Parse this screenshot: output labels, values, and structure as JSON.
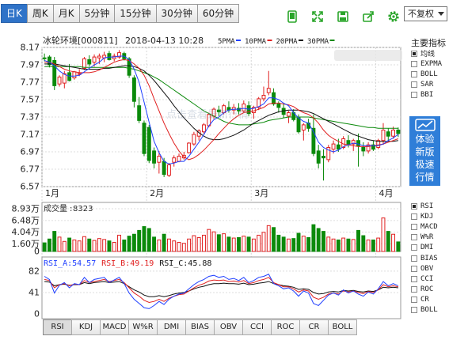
{
  "period_tabs": [
    {
      "label": "日K",
      "active": true
    },
    {
      "label": "周K",
      "active": false
    },
    {
      "label": "月K",
      "active": false
    },
    {
      "label": "5分钟",
      "active": false
    },
    {
      "label": "15分钟",
      "active": false
    },
    {
      "label": "30分钟",
      "active": false
    },
    {
      "label": "60分钟",
      "active": false
    }
  ],
  "tools": [
    {
      "name": "phone-icon"
    },
    {
      "name": "fullscreen-icon"
    },
    {
      "name": "save-icon"
    },
    {
      "name": "share-icon"
    },
    {
      "name": "settings-icon"
    }
  ],
  "fuquan_select": "不复权",
  "watermark": "点击查看最新行情",
  "right_panel": {
    "title": "主要指标",
    "main_indicators": [
      {
        "label": "均线",
        "checked": true
      },
      {
        "label": "EXPMA",
        "checked": false
      },
      {
        "label": "BOLL",
        "checked": false
      },
      {
        "label": "SAR",
        "checked": false
      },
      {
        "label": "BBI",
        "checked": false
      }
    ],
    "promo": [
      "体验",
      "新版",
      "极速",
      "行情"
    ],
    "sub_indicators": [
      {
        "label": "RSI",
        "checked": true
      },
      {
        "label": "KDJ",
        "checked": false
      },
      {
        "label": "MACD",
        "checked": false
      },
      {
        "label": "W%R",
        "checked": false
      },
      {
        "label": "DMI",
        "checked": false
      },
      {
        "label": "BIAS",
        "checked": false
      },
      {
        "label": "OBV",
        "checked": false
      },
      {
        "label": "CCI",
        "checked": false
      },
      {
        "label": "ROC",
        "checked": false
      },
      {
        "label": "CR",
        "checked": false
      },
      {
        "label": "BOLL",
        "checked": false
      }
    ]
  },
  "indicator_tabs": [
    {
      "label": "RSI",
      "active": true
    },
    {
      "label": "KDJ",
      "active": false
    },
    {
      "label": "MACD",
      "active": false
    },
    {
      "label": "W%R",
      "active": false
    },
    {
      "label": "DMI",
      "active": false
    },
    {
      "label": "BIAS",
      "active": false
    },
    {
      "label": "OBV",
      "active": false
    },
    {
      "label": "CCI",
      "active": false
    },
    {
      "label": "ROC",
      "active": false
    },
    {
      "label": "CR",
      "active": false
    },
    {
      "label": "BOLL",
      "active": false
    }
  ],
  "chart_data": {
    "type": "candlestick",
    "stock": "冰轮环境[000811]",
    "datetime": "2018-04-13 10:28",
    "ma_legend": [
      {
        "label": "5PMA",
        "color": "#1f3fff"
      },
      {
        "label": "10PMA",
        "color": "#e02020"
      },
      {
        "label": "20PMA",
        "color": "#111111"
      },
      {
        "label": "30PMA",
        "color": "#0b8a0b"
      }
    ],
    "price_axis": {
      "ticks": [
        8.17,
        7.97,
        7.77,
        7.57,
        7.37,
        7.17,
        6.97,
        6.77,
        6.57
      ],
      "range": [
        6.57,
        8.17
      ]
    },
    "month_labels": [
      {
        "label": "1月",
        "index": 0
      },
      {
        "label": "2月",
        "index": 21
      },
      {
        "label": "3月",
        "index": 42
      },
      {
        "label": "4月",
        "index": 67
      }
    ],
    "colors": {
      "up": "#e02020",
      "down": "#0b8a0b"
    },
    "candles": [
      {
        "o": 8.05,
        "h": 8.1,
        "l": 8.01,
        "c": 8.04
      },
      {
        "o": 8.06,
        "h": 8.08,
        "l": 7.94,
        "c": 7.97
      },
      {
        "o": 8.02,
        "h": 8.06,
        "l": 7.68,
        "c": 7.73
      },
      {
        "o": 7.75,
        "h": 7.85,
        "l": 7.72,
        "c": 7.83
      },
      {
        "o": 7.76,
        "h": 7.9,
        "l": 7.7,
        "c": 7.87
      },
      {
        "o": 7.88,
        "h": 7.98,
        "l": 7.78,
        "c": 7.79
      },
      {
        "o": 7.82,
        "h": 7.9,
        "l": 7.8,
        "c": 7.89
      },
      {
        "o": 7.86,
        "h": 7.92,
        "l": 7.84,
        "c": 7.87
      },
      {
        "o": 7.93,
        "h": 8.06,
        "l": 7.91,
        "c": 8.04
      },
      {
        "o": 8.03,
        "h": 8.08,
        "l": 7.95,
        "c": 7.98
      },
      {
        "o": 8.0,
        "h": 8.09,
        "l": 7.95,
        "c": 8.06
      },
      {
        "o": 8.05,
        "h": 8.1,
        "l": 7.98,
        "c": 8.07
      },
      {
        "o": 8.05,
        "h": 8.12,
        "l": 8.0,
        "c": 8.08
      },
      {
        "o": 8.1,
        "h": 8.13,
        "l": 8.02,
        "c": 8.03
      },
      {
        "o": 8.04,
        "h": 8.1,
        "l": 8.01,
        "c": 8.07
      },
      {
        "o": 8.06,
        "h": 8.14,
        "l": 8.04,
        "c": 8.11
      },
      {
        "o": 8.1,
        "h": 8.12,
        "l": 8.02,
        "c": 8.04
      },
      {
        "o": 8.04,
        "h": 8.06,
        "l": 7.82,
        "c": 7.85
      },
      {
        "o": 7.82,
        "h": 7.85,
        "l": 7.48,
        "c": 7.55
      },
      {
        "o": 7.5,
        "h": 7.6,
        "l": 7.3,
        "c": 7.33
      },
      {
        "o": 7.3,
        "h": 7.33,
        "l": 6.92,
        "c": 6.95
      },
      {
        "o": 7.25,
        "h": 7.28,
        "l": 6.84,
        "c": 6.87
      },
      {
        "o": 6.98,
        "h": 7.02,
        "l": 6.78,
        "c": 6.84
      },
      {
        "o": 6.85,
        "h": 6.98,
        "l": 6.72,
        "c": 6.92
      },
      {
        "o": 6.86,
        "h": 6.9,
        "l": 6.68,
        "c": 6.71
      },
      {
        "o": 6.7,
        "h": 6.84,
        "l": 6.68,
        "c": 6.82
      },
      {
        "o": 6.85,
        "h": 6.93,
        "l": 6.8,
        "c": 6.9
      },
      {
        "o": 6.86,
        "h": 6.95,
        "l": 6.85,
        "c": 6.92
      },
      {
        "o": 6.9,
        "h": 6.97,
        "l": 6.88,
        "c": 6.93
      },
      {
        "o": 6.96,
        "h": 7.08,
        "l": 6.95,
        "c": 7.07
      },
      {
        "o": 7.06,
        "h": 7.2,
        "l": 7.04,
        "c": 7.17
      },
      {
        "o": 7.15,
        "h": 7.23,
        "l": 7.1,
        "c": 7.21
      },
      {
        "o": 7.2,
        "h": 7.3,
        "l": 7.18,
        "c": 7.28
      },
      {
        "o": 7.27,
        "h": 7.42,
        "l": 7.25,
        "c": 7.4
      },
      {
        "o": 7.38,
        "h": 7.48,
        "l": 7.35,
        "c": 7.46
      },
      {
        "o": 7.45,
        "h": 7.5,
        "l": 7.38,
        "c": 7.43
      },
      {
        "o": 7.42,
        "h": 7.52,
        "l": 7.4,
        "c": 7.5
      },
      {
        "o": 7.48,
        "h": 7.55,
        "l": 7.42,
        "c": 7.45
      },
      {
        "o": 7.45,
        "h": 7.52,
        "l": 7.4,
        "c": 7.48
      },
      {
        "o": 7.47,
        "h": 7.53,
        "l": 7.4,
        "c": 7.44
      },
      {
        "o": 7.44,
        "h": 7.56,
        "l": 7.42,
        "c": 7.52
      },
      {
        "o": 7.5,
        "h": 7.55,
        "l": 7.38,
        "c": 7.41
      },
      {
        "o": 7.42,
        "h": 7.5,
        "l": 7.35,
        "c": 7.48
      },
      {
        "o": 7.48,
        "h": 7.6,
        "l": 7.45,
        "c": 7.58
      },
      {
        "o": 7.58,
        "h": 7.72,
        "l": 7.55,
        "c": 7.62
      },
      {
        "o": 7.65,
        "h": 7.9,
        "l": 7.62,
        "c": 7.7
      },
      {
        "o": 7.65,
        "h": 7.7,
        "l": 7.5,
        "c": 7.52
      },
      {
        "o": 7.52,
        "h": 7.55,
        "l": 7.42,
        "c": 7.48
      },
      {
        "o": 7.47,
        "h": 7.52,
        "l": 7.36,
        "c": 7.4
      },
      {
        "o": 7.38,
        "h": 7.44,
        "l": 7.3,
        "c": 7.42
      },
      {
        "o": 7.42,
        "h": 7.46,
        "l": 7.32,
        "c": 7.34
      },
      {
        "o": 7.36,
        "h": 7.4,
        "l": 7.18,
        "c": 7.2
      },
      {
        "o": 7.22,
        "h": 7.3,
        "l": 7.1,
        "c": 7.28
      },
      {
        "o": 7.3,
        "h": 7.35,
        "l": 7.2,
        "c": 7.24
      },
      {
        "o": 7.24,
        "h": 7.4,
        "l": 6.92,
        "c": 6.95
      },
      {
        "o": 6.98,
        "h": 7.05,
        "l": 6.78,
        "c": 6.84
      },
      {
        "o": 6.92,
        "h": 7.0,
        "l": 6.64,
        "c": 6.9
      },
      {
        "o": 6.88,
        "h": 7.05,
        "l": 6.85,
        "c": 7.02
      },
      {
        "o": 7.0,
        "h": 7.1,
        "l": 6.95,
        "c": 7.06
      },
      {
        "o": 7.05,
        "h": 7.12,
        "l": 6.97,
        "c": 7.0
      },
      {
        "o": 7.02,
        "h": 7.15,
        "l": 7.0,
        "c": 7.12
      },
      {
        "o": 7.1,
        "h": 7.16,
        "l": 7.02,
        "c": 7.06
      },
      {
        "o": 7.06,
        "h": 7.12,
        "l": 6.98,
        "c": 7.1
      },
      {
        "o": 7.1,
        "h": 7.18,
        "l": 6.8,
        "c": 7.04
      },
      {
        "o": 7.02,
        "h": 7.08,
        "l": 6.92,
        "c": 6.98
      },
      {
        "o": 6.98,
        "h": 7.08,
        "l": 6.95,
        "c": 7.05
      },
      {
        "o": 7.05,
        "h": 7.1,
        "l": 6.98,
        "c": 7.0
      },
      {
        "o": 7.02,
        "h": 7.12,
        "l": 7.0,
        "c": 7.1
      },
      {
        "o": 7.1,
        "h": 7.3,
        "l": 7.05,
        "c": 7.22
      },
      {
        "o": 7.2,
        "h": 7.24,
        "l": 7.1,
        "c": 7.15
      },
      {
        "o": 7.15,
        "h": 7.26,
        "l": 7.12,
        "c": 7.22
      },
      {
        "o": 7.22,
        "h": 7.25,
        "l": 7.14,
        "c": 7.18
      }
    ],
    "ma5": [
      8.02,
      8.0,
      7.96,
      7.9,
      7.86,
      7.84,
      7.84,
      7.85,
      7.89,
      7.93,
      7.97,
      8.0,
      8.05,
      8.06,
      8.06,
      8.07,
      8.07,
      8.03,
      7.92,
      7.77,
      7.54,
      7.31,
      7.09,
      6.96,
      6.86,
      6.83,
      6.84,
      6.86,
      6.86,
      6.92,
      7.0,
      7.08,
      7.17,
      7.27,
      7.34,
      7.37,
      7.42,
      7.45,
      7.46,
      7.46,
      7.47,
      7.46,
      7.47,
      7.49,
      7.52,
      7.59,
      7.59,
      7.57,
      7.53,
      7.5,
      7.42,
      7.36,
      7.32,
      7.3,
      7.2,
      7.08,
      7.02,
      6.99,
      6.97,
      6.99,
      7.03,
      7.05,
      7.07,
      7.06,
      7.04,
      7.04,
      7.04,
      7.04,
      7.06,
      7.1,
      7.13,
      7.17
    ],
    "ma10": [
      8.0,
      8.0,
      7.98,
      7.95,
      7.92,
      7.9,
      7.89,
      7.88,
      7.88,
      7.88,
      7.89,
      7.91,
      7.94,
      7.97,
      8.0,
      8.02,
      8.03,
      8.02,
      7.98,
      7.93,
      7.85,
      7.73,
      7.58,
      7.44,
      7.3,
      7.18,
      7.07,
      6.98,
      6.91,
      6.88,
      6.9,
      6.94,
      6.99,
      7.05,
      7.11,
      7.18,
      7.24,
      7.3,
      7.35,
      7.39,
      7.42,
      7.43,
      7.44,
      7.46,
      7.48,
      7.52,
      7.53,
      7.53,
      7.52,
      7.51,
      7.49,
      7.45,
      7.42,
      7.4,
      7.36,
      7.3,
      7.22,
      7.16,
      7.12,
      7.09,
      7.06,
      7.05,
      7.04,
      7.03,
      7.03,
      7.03,
      7.04,
      7.05,
      7.06,
      7.08,
      7.1,
      7.12
    ],
    "ma20": [
      7.98,
      7.98,
      7.98,
      7.97,
      7.96,
      7.95,
      7.94,
      7.93,
      7.92,
      7.92,
      7.92,
      7.92,
      7.93,
      7.93,
      7.94,
      7.95,
      7.96,
      7.96,
      7.95,
      7.93,
      7.9,
      7.85,
      7.79,
      7.72,
      7.65,
      7.58,
      7.5,
      7.43,
      7.36,
      7.3,
      7.24,
      7.19,
      7.15,
      7.12,
      7.11,
      7.11,
      7.12,
      7.14,
      7.16,
      7.19,
      7.22,
      7.26,
      7.3,
      7.33,
      7.36,
      7.39,
      7.41,
      7.43,
      7.44,
      7.45,
      7.45,
      7.45,
      7.44,
      7.43,
      7.41,
      7.38,
      7.35,
      7.32,
      7.29,
      7.26,
      7.23,
      7.2,
      7.17,
      7.15,
      7.13,
      7.11,
      7.1,
      7.09,
      7.09,
      7.09,
      7.09,
      7.1
    ],
    "ma30": [
      7.95,
      7.95,
      7.95,
      7.95,
      7.95,
      7.95,
      7.95,
      7.95,
      7.94,
      7.94,
      7.94,
      7.94,
      7.94,
      7.94,
      7.94,
      7.94,
      7.94,
      7.93,
      7.92,
      7.9,
      7.88,
      7.86,
      7.83,
      7.8,
      7.76,
      7.72,
      7.68,
      7.64,
      7.6,
      7.56,
      7.52,
      7.48,
      7.44,
      7.41,
      7.38,
      7.35,
      7.32,
      7.3,
      7.29,
      7.28,
      7.28,
      7.28,
      7.29,
      7.3,
      7.31,
      7.33,
      7.34,
      7.35,
      7.36,
      7.37,
      7.37,
      7.37,
      7.37,
      7.37,
      7.36,
      7.35,
      7.34,
      7.33,
      7.32,
      7.31,
      7.3,
      7.29,
      7.28,
      7.27,
      7.26,
      7.25,
      7.25,
      7.24,
      7.24,
      7.24,
      7.24,
      7.24
    ],
    "volume": {
      "label": "成交量",
      "value": "8323",
      "unit": "万",
      "ticks": [
        8.93,
        6.48,
        4.04,
        1.6,
        0
      ],
      "ticks_text": [
        "8.93万",
        "6.48万",
        "4.04万",
        "1.60万",
        "0"
      ],
      "max": 8.93,
      "values": [
        1.8,
        2.6,
        4.2,
        3.0,
        2.1,
        2.8,
        2.4,
        2.2,
        3.1,
        2.6,
        2.3,
        2.7,
        2.5,
        2.2,
        1.9,
        3.4,
        2.4,
        3.2,
        3.6,
        4.4,
        5.2,
        4.8,
        3.0,
        2.4,
        3.6,
        2.6,
        2.2,
        1.9,
        1.7,
        2.6,
        3.3,
        2.9,
        3.4,
        4.6,
        4.1,
        3.5,
        3.7,
        3.0,
        2.8,
        2.9,
        3.2,
        3.0,
        2.6,
        3.4,
        4.0,
        5.4,
        5.0,
        3.4,
        3.0,
        2.6,
        2.7,
        3.8,
        3.2,
        2.9,
        5.6,
        4.8,
        4.2,
        3.0,
        2.6,
        2.4,
        2.8,
        2.6,
        2.5,
        4.4,
        3.3,
        2.4,
        2.4,
        2.8,
        7.0,
        4.2,
        3.6,
        2.0
      ]
    },
    "rsi": {
      "legend": [
        {
          "label": "RSI_A:54.57",
          "color": "#1f3fff"
        },
        {
          "label": "RSI_B:49.19",
          "color": "#e02020"
        },
        {
          "label": "RSI_C:45.88",
          "color": "#111111"
        }
      ],
      "ticks": [
        82,
        41,
        0
      ],
      "range": [
        0,
        100
      ],
      "rsi_a": [
        72,
        66,
        40,
        55,
        60,
        50,
        58,
        56,
        70,
        60,
        66,
        68,
        70,
        60,
        65,
        70,
        58,
        40,
        28,
        20,
        12,
        10,
        16,
        24,
        18,
        28,
        34,
        38,
        40,
        48,
        56,
        62,
        66,
        72,
        74,
        70,
        72,
        66,
        68,
        64,
        70,
        60,
        64,
        70,
        72,
        76,
        58,
        54,
        48,
        50,
        44,
        34,
        44,
        40,
        20,
        16,
        26,
        36,
        40,
        36,
        46,
        40,
        44,
        38,
        34,
        42,
        38,
        48,
        62,
        54,
        58,
        54
      ],
      "rsi_b": [
        66,
        64,
        50,
        56,
        58,
        54,
        57,
        56,
        64,
        60,
        62,
        64,
        66,
        62,
        64,
        66,
        60,
        50,
        40,
        34,
        26,
        22,
        24,
        28,
        24,
        30,
        34,
        37,
        38,
        44,
        50,
        55,
        58,
        63,
        65,
        64,
        65,
        62,
        63,
        61,
        64,
        58,
        60,
        64,
        66,
        70,
        60,
        56,
        52,
        52,
        48,
        42,
        46,
        44,
        32,
        28,
        32,
        38,
        40,
        38,
        44,
        42,
        44,
        41,
        39,
        43,
        41,
        46,
        56,
        52,
        54,
        52
      ],
      "rsi_c": [
        62,
        61,
        54,
        56,
        57,
        55,
        56,
        56,
        60,
        58,
        60,
        61,
        62,
        60,
        61,
        62,
        58,
        52,
        46,
        42,
        36,
        33,
        33,
        35,
        33,
        35,
        38,
        40,
        41,
        44,
        48,
        51,
        53,
        56,
        58,
        58,
        59,
        58,
        58,
        57,
        59,
        56,
        57,
        59,
        60,
        62,
        58,
        56,
        54,
        53,
        51,
        47,
        48,
        47,
        41,
        38,
        39,
        42,
        43,
        42,
        45,
        44,
        45,
        43,
        42,
        44,
        43,
        46,
        51,
        50,
        51,
        50
      ]
    }
  }
}
